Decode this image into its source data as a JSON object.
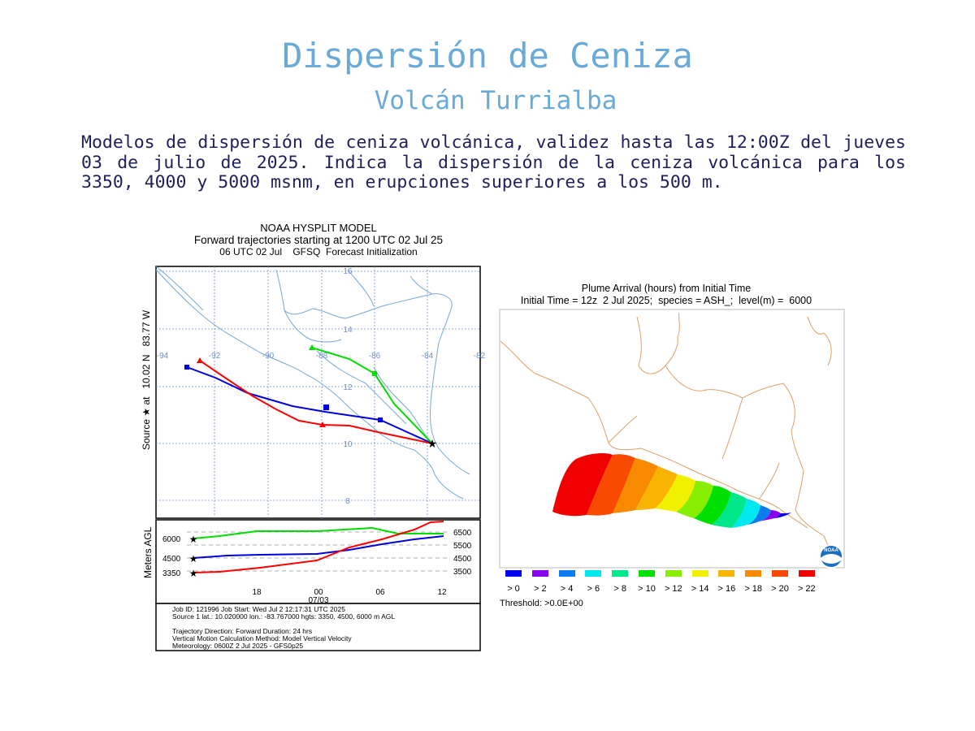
{
  "header": {
    "title": "Dispersión de Ceniza",
    "subtitle": "Volcán Turrialba"
  },
  "description": "Modelos de dispersión de ceniza volcánica, validez hasta las 12:00Z del jueves 03 de julio de 2025. Indica la dispersión de la ceniza volcánica para los 3350, 4000 y 5000 msnm, en erupciones superiores a los 500 m.",
  "hysplit": {
    "title_line1": "NOAA HYSPLIT MODEL",
    "title_line2": "Forward trajectories starting at 1200 UTC 02 Jul 25",
    "title_line3": "06 UTC 02 Jul    GFSQ  Forecast Initialization",
    "source_label": "Source ★ at   10.02 N   83.77 W",
    "lon_labels": [
      "-94",
      "-92",
      "-90",
      "-88",
      "-86",
      "-84",
      "-82"
    ],
    "lat_labels": [
      "16",
      "14",
      "12",
      "10",
      "8"
    ],
    "height_axis_label": "Meters AGL",
    "left_heights": [
      "6000",
      "4500",
      "3350"
    ],
    "right_heights": [
      "6500",
      "5500",
      "4500",
      "3500"
    ],
    "time_labels": [
      "18",
      "00",
      "06",
      "12"
    ],
    "date_label": "07/03",
    "info_lines": [
      "Job ID: 121996                    Job Start: Wed Jul  2 12:17:31 UTC 2025",
      "Source 1 lat.: 10.020000  lon.: -83.767000  hgts: 3350, 4500, 6000 m AGL",
      "",
      "Trajectory Direction: Forward      Duration: 24 hrs",
      "Vertical Motion Calculation Method:      Model Vertical Velocity",
      "Meteorology: 0600Z 2 Jul 2025 - GFS0p25"
    ],
    "colors": {
      "h3350": "#ff0000",
      "h4500": "#0000dd",
      "h6000": "#00dd00",
      "grid": "#6f8fc9",
      "coast": "#7aa7d6"
    }
  },
  "plume": {
    "title_line1": "Plume Arrival (hours) from Initial Time",
    "title_line2": "Initial Time = 12z  2 Jul 2025;  species = ASH_;  level(m) =  6000",
    "legend": [
      {
        "label": "> 0",
        "color": "#0000ee"
      },
      {
        "label": "> 2",
        "color": "#8a00ee"
      },
      {
        "label": "> 4",
        "color": "#0a7cf0"
      },
      {
        "label": "> 6",
        "color": "#00e8f0"
      },
      {
        "label": "> 8",
        "color": "#00e88a"
      },
      {
        "label": "> 10",
        "color": "#00e000"
      },
      {
        "label": "> 12",
        "color": "#88ee00"
      },
      {
        "label": "> 14",
        "color": "#f0f000"
      },
      {
        "label": "> 16",
        "color": "#f8b400"
      },
      {
        "label": "> 18",
        "color": "#f88a00"
      },
      {
        "label": "> 20",
        "color": "#f84a00"
      },
      {
        "label": "> 22",
        "color": "#f00000"
      }
    ],
    "threshold": "Threshold: >0.0E+00",
    "coast_color": "#d9a26a",
    "logo_text": "NOAA"
  }
}
